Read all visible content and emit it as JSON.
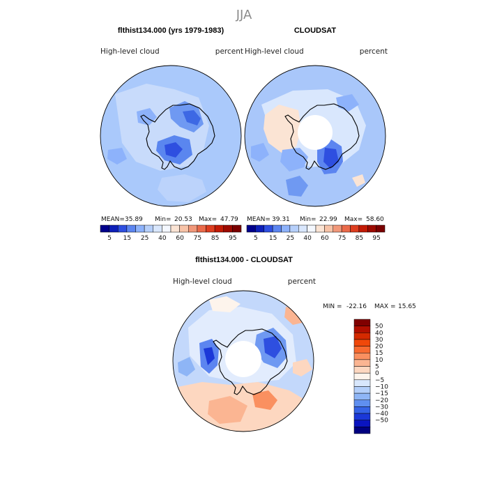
{
  "figure": {
    "title": "JJA"
  },
  "chart_data": [
    {
      "type": "heatmap",
      "projection": "south-polar-stereographic",
      "title": "flthist134.000 (yrs 1979-1983)",
      "left_label": "High-level  cloud",
      "right_label": "percent",
      "stats": {
        "mean_label": "MEAN=",
        "mean": "35.89",
        "min_label": "Min=",
        "min": "20.53",
        "max_label": "Max=",
        "max": "47.79"
      },
      "colorbar": {
        "levels": [
          "5",
          "15",
          "25",
          "40",
          "60",
          "75",
          "85",
          "95"
        ],
        "colors": [
          "#00008b",
          "#0d1fb8",
          "#2e4fe0",
          "#5c85f0",
          "#8db2fb",
          "#b6cffa",
          "#d9e7fd",
          "#f4f8ff",
          "#fbe4d4",
          "#f7c3a8",
          "#f1987a",
          "#ea6a4a",
          "#dd3d1f",
          "#c21a05",
          "#9c0a00",
          "#7a0000"
        ]
      },
      "field": {
        "base": "#aac9fb",
        "interior": "#c6dafb",
        "polar_hole": false
      }
    },
    {
      "type": "heatmap",
      "projection": "south-polar-stereographic",
      "title": "CLOUDSAT",
      "left_label": "High-level  cloud",
      "right_label": "percent",
      "stats": {
        "mean_label": "MEAN=",
        "mean": "39.31",
        "min_label": "Min=",
        "min": "22.99",
        "max_label": "Max=",
        "max": "58.60"
      },
      "colorbar": {
        "levels": [
          "5",
          "15",
          "25",
          "40",
          "60",
          "75",
          "85",
          "95"
        ],
        "colors": [
          "#00008b",
          "#0d1fb8",
          "#2e4fe0",
          "#5c85f0",
          "#8db2fb",
          "#b6cffa",
          "#d9e7fd",
          "#f4f8ff",
          "#fbe4d4",
          "#f7c3a8",
          "#f1987a",
          "#ea6a4a",
          "#dd3d1f",
          "#c21a05",
          "#9c0a00",
          "#7a0000"
        ]
      },
      "field": {
        "base": "#a9c7fa",
        "interior": "#d9e7fd",
        "polar_hole": true
      }
    },
    {
      "type": "heatmap",
      "projection": "south-polar-stereographic",
      "title": "flthist134.000 - CLOUDSAT",
      "left_label": "High-level  cloud",
      "right_label": "percent",
      "stats": {
        "min_label": "MIN =",
        "min": "-22.16",
        "max_label": "MAX =",
        "max": "15.65"
      },
      "colorbar": {
        "orientation": "vertical",
        "levels": [
          "50",
          "40",
          "30",
          "20",
          "15",
          "10",
          "5",
          "0",
          "−5",
          "−10",
          "−15",
          "−20",
          "−30",
          "−40",
          "−50"
        ],
        "colors": [
          "#800000",
          "#b10f00",
          "#d42a00",
          "#f0480a",
          "#f86a30",
          "#fa9060",
          "#fbb592",
          "#fdd7c0",
          "#fdf4ec",
          "#d8e7fc",
          "#b3cffa",
          "#8eb5f6",
          "#5f8ff0",
          "#3563e6",
          "#1b38d8",
          "#0a14c0",
          "#000080"
        ]
      },
      "field": {
        "base": "#c3d8fb",
        "interior": "#e2ecfd",
        "polar_hole": true
      }
    }
  ]
}
